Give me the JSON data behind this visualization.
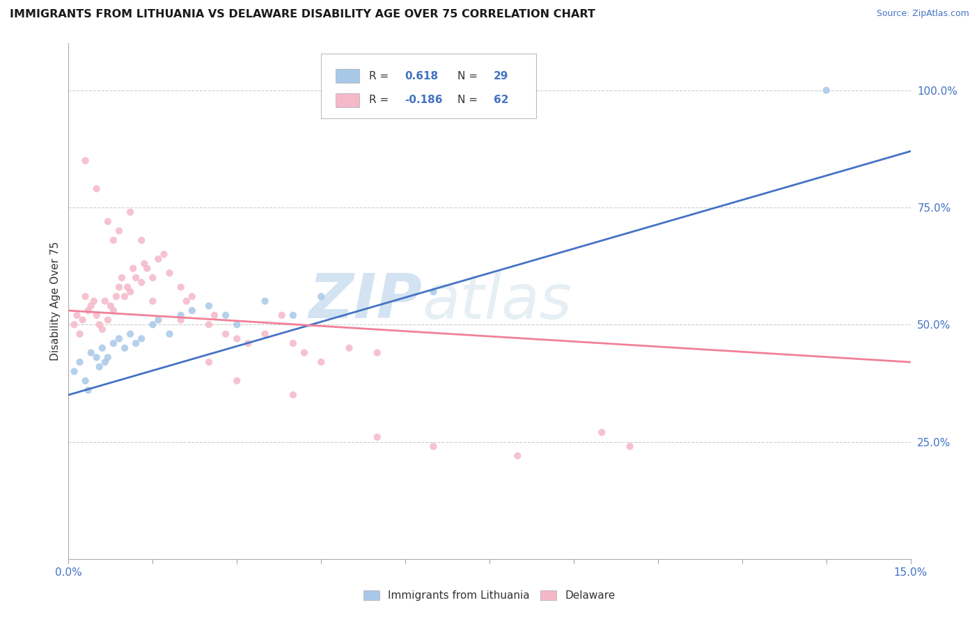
{
  "title": "IMMIGRANTS FROM LITHUANIA VS DELAWARE DISABILITY AGE OVER 75 CORRELATION CHART",
  "source": "Source: ZipAtlas.com",
  "ylabel": "Disability Age Over 75",
  "x_range": [
    0.0,
    15.0
  ],
  "y_range": [
    0.0,
    110.0
  ],
  "y_ticks": [
    25.0,
    50.0,
    75.0,
    100.0
  ],
  "legend1_R": "0.618",
  "legend1_N": "29",
  "legend2_R": "-0.186",
  "legend2_N": "62",
  "color_blue": "#a8c8e8",
  "color_pink": "#f4b8c8",
  "color_blue_line": "#4472c4",
  "color_pink_line": "#f08098",
  "watermark_ZIP": "ZIP",
  "watermark_atlas": "atlas",
  "blue_points_x": [
    0.1,
    0.2,
    0.3,
    0.35,
    0.4,
    0.5,
    0.55,
    0.6,
    0.65,
    0.7,
    0.8,
    0.9,
    1.0,
    1.1,
    1.2,
    1.3,
    1.5,
    1.6,
    1.8,
    2.0,
    2.2,
    2.5,
    2.8,
    3.0,
    3.5,
    4.0,
    4.5,
    6.5,
    13.5
  ],
  "blue_points_y": [
    40,
    42,
    38,
    36,
    44,
    43,
    41,
    45,
    42,
    43,
    46,
    47,
    45,
    48,
    46,
    47,
    50,
    51,
    48,
    52,
    53,
    54,
    52,
    50,
    55,
    52,
    56,
    57,
    100
  ],
  "pink_points_x": [
    0.1,
    0.15,
    0.2,
    0.25,
    0.3,
    0.35,
    0.4,
    0.45,
    0.5,
    0.55,
    0.6,
    0.65,
    0.7,
    0.75,
    0.8,
    0.85,
    0.9,
    0.95,
    1.0,
    1.05,
    1.1,
    1.15,
    1.2,
    1.3,
    1.35,
    1.4,
    1.5,
    1.6,
    1.7,
    1.8,
    2.0,
    2.1,
    2.2,
    2.5,
    2.6,
    2.8,
    3.0,
    3.2,
    3.5,
    3.8,
    4.0,
    4.2,
    4.5,
    5.0,
    5.5,
    6.5,
    8.0,
    9.5,
    10.0,
    0.3,
    0.5,
    0.7,
    0.8,
    0.9,
    1.1,
    1.3,
    1.5,
    2.0,
    2.5,
    3.0,
    4.0,
    5.5
  ],
  "pink_points_y": [
    50,
    52,
    48,
    51,
    56,
    53,
    54,
    55,
    52,
    50,
    49,
    55,
    51,
    54,
    53,
    56,
    58,
    60,
    56,
    58,
    57,
    62,
    60,
    59,
    63,
    62,
    60,
    64,
    65,
    61,
    58,
    55,
    56,
    50,
    52,
    48,
    47,
    46,
    48,
    52,
    46,
    44,
    42,
    45,
    44,
    24,
    22,
    27,
    24,
    85,
    79,
    72,
    68,
    70,
    74,
    68,
    55,
    51,
    42,
    38,
    35,
    26
  ],
  "blue_trendline_x": [
    0.0,
    15.0
  ],
  "blue_trendline_y": [
    35.0,
    87.0
  ],
  "pink_trendline_x": [
    0.0,
    15.0
  ],
  "pink_trendline_y": [
    53.0,
    42.0
  ]
}
